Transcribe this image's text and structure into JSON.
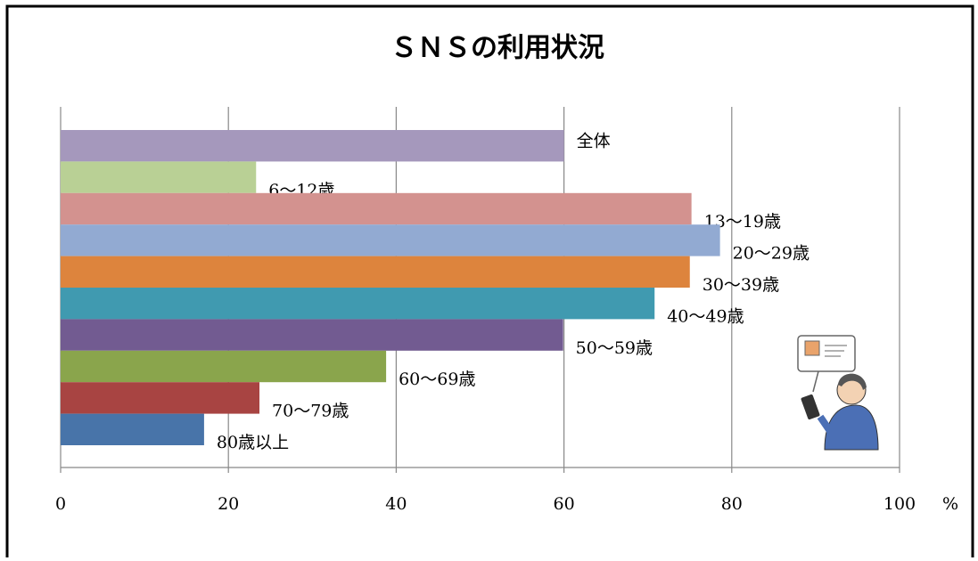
{
  "chart_data": {
    "type": "bar",
    "orientation": "horizontal",
    "title": "ＳＮＳの利用状況",
    "categories": [
      "全体",
      "6～12歳",
      "13～19歳",
      "20～29歳",
      "30～39歳",
      "40～49歳",
      "50～59歳",
      "60～69歳",
      "70～79歳",
      "80歳以上"
    ],
    "values": [
      60.0,
      23.3,
      75.2,
      78.6,
      75.0,
      70.8,
      59.9,
      38.8,
      23.7,
      17.1
    ],
    "colors": [
      "#a598bc",
      "#b9d095",
      "#d3928f",
      "#92aad2",
      "#dd843d",
      "#409ab0",
      "#725b91",
      "#8aa54c",
      "#a84442",
      "#4874a9"
    ],
    "xlabel": "%",
    "xlim": [
      0,
      100
    ],
    "xticks": [
      0,
      20,
      40,
      60,
      80,
      100
    ],
    "grid": true
  }
}
